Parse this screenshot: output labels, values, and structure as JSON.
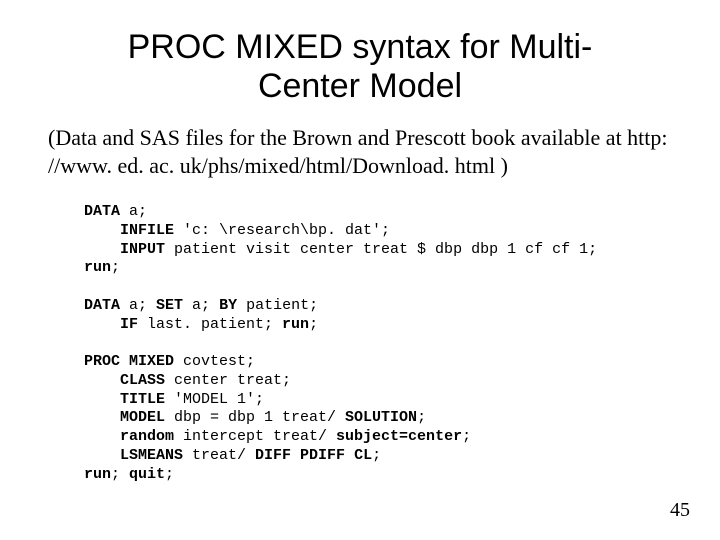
{
  "title_line1": "PROC MIXED syntax for Multi-",
  "title_line2": "Center Model",
  "subtitle": "(Data and SAS files for the Brown and Prescott book available at http: //www. ed. ac. uk/phs/mixed/html/Download. html )",
  "code": {
    "l1a": "DATA",
    "l1b": " a;",
    "l2a": "    INFILE",
    "l2b": " 'c: \\research\\bp. dat';",
    "l3a": "    INPUT",
    "l3b": " patient visit center treat $ dbp dbp 1 cf cf 1;",
    "l4a": "run",
    "l4b": ";",
    "l5a": "DATA",
    "l5b": " a; ",
    "l5c": "SET",
    "l5d": " a; ",
    "l5e": "BY",
    "l5f": " patient;",
    "l6a": "    IF",
    "l6b": " last. patient; ",
    "l6c": "run",
    "l6d": ";",
    "l7a": "PROC MIXED",
    "l7b": " covtest;",
    "l8a": "    CLASS",
    "l8b": " center treat;",
    "l9a": "    TITLE",
    "l9b": " 'MODEL 1';",
    "l10a": "    MODEL",
    "l10b": " dbp = dbp 1 treat/ ",
    "l10c": "SOLUTION",
    "l10d": ";",
    "l11a": "    random",
    "l11b": " intercept treat/ ",
    "l11c": "subject=center",
    "l11d": ";",
    "l12a": "    LSMEANS",
    "l12b": " treat/ ",
    "l12c": "DIFF PDIFF CL",
    "l12d": ";",
    "l13a": "run",
    "l13b": "; ",
    "l13c": "quit",
    "l13d": ";"
  },
  "pagenum": "45"
}
